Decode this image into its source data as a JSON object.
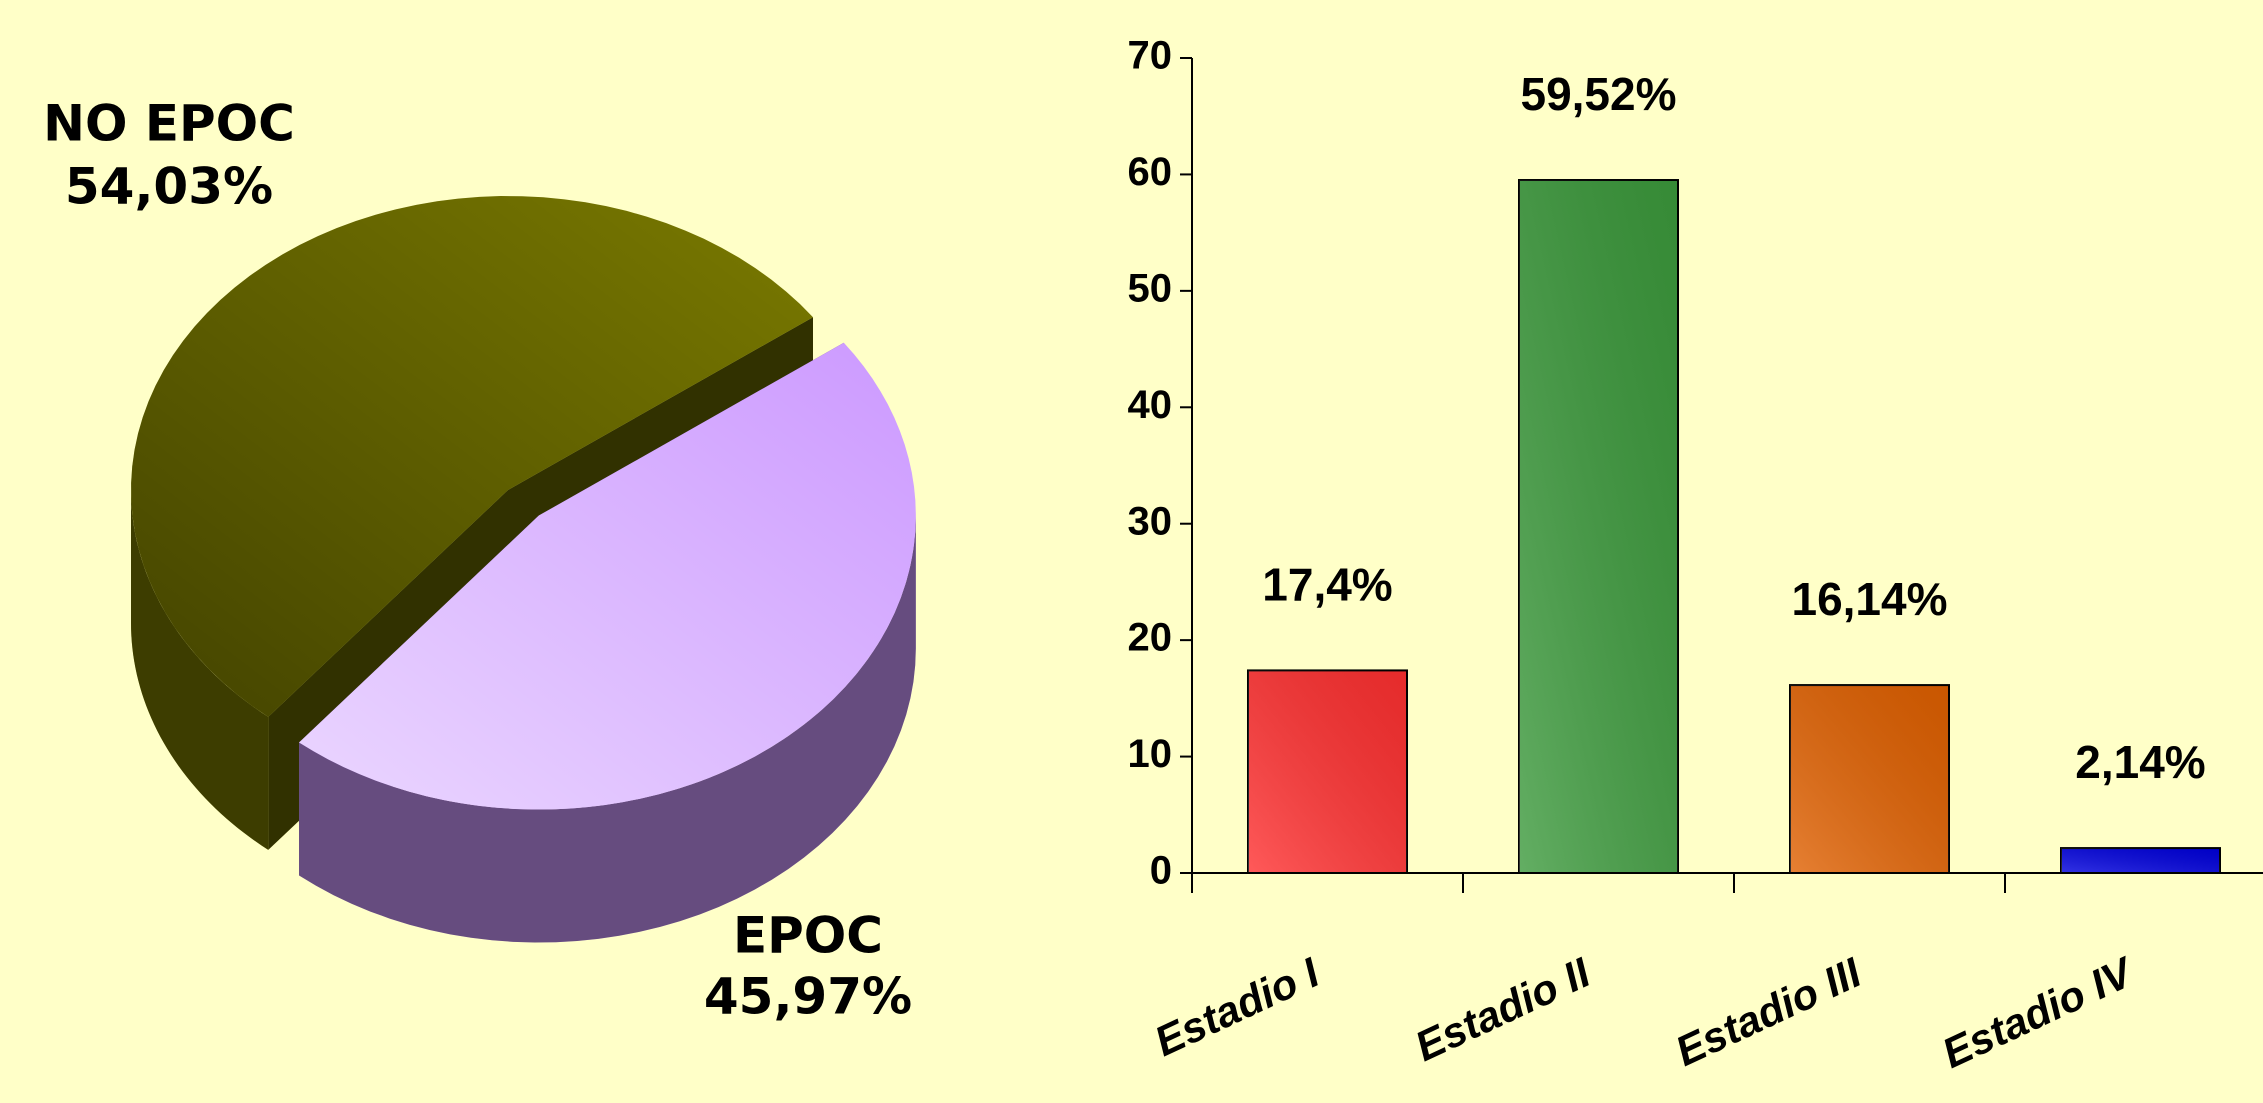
{
  "chart_data": [
    {
      "type": "pie",
      "categories": [
        "NO EPOC",
        "EPOC"
      ],
      "values": [
        54.03,
        45.97
      ],
      "value_labels": [
        "54,03%",
        "45,97%"
      ],
      "colors": [
        "#7a7a00",
        "#cc99ff"
      ],
      "exploded": [
        false,
        true
      ]
    },
    {
      "type": "bar",
      "categories": [
        "Estadio I",
        "Estadio II",
        "Estadio III",
        "Estadio IV"
      ],
      "values": [
        17.4,
        59.52,
        16.14,
        2.14
      ],
      "value_labels": [
        "17,4%",
        "59,52%",
        "16,14%",
        "2,14%"
      ],
      "colors": [
        "#ff3030",
        "#3c9a3c",
        "#e06000",
        "#0000dd"
      ],
      "ylim": [
        0,
        70
      ],
      "yticks": [
        0,
        10,
        20,
        30,
        40,
        50,
        60,
        70
      ],
      "grid": false
    }
  ]
}
